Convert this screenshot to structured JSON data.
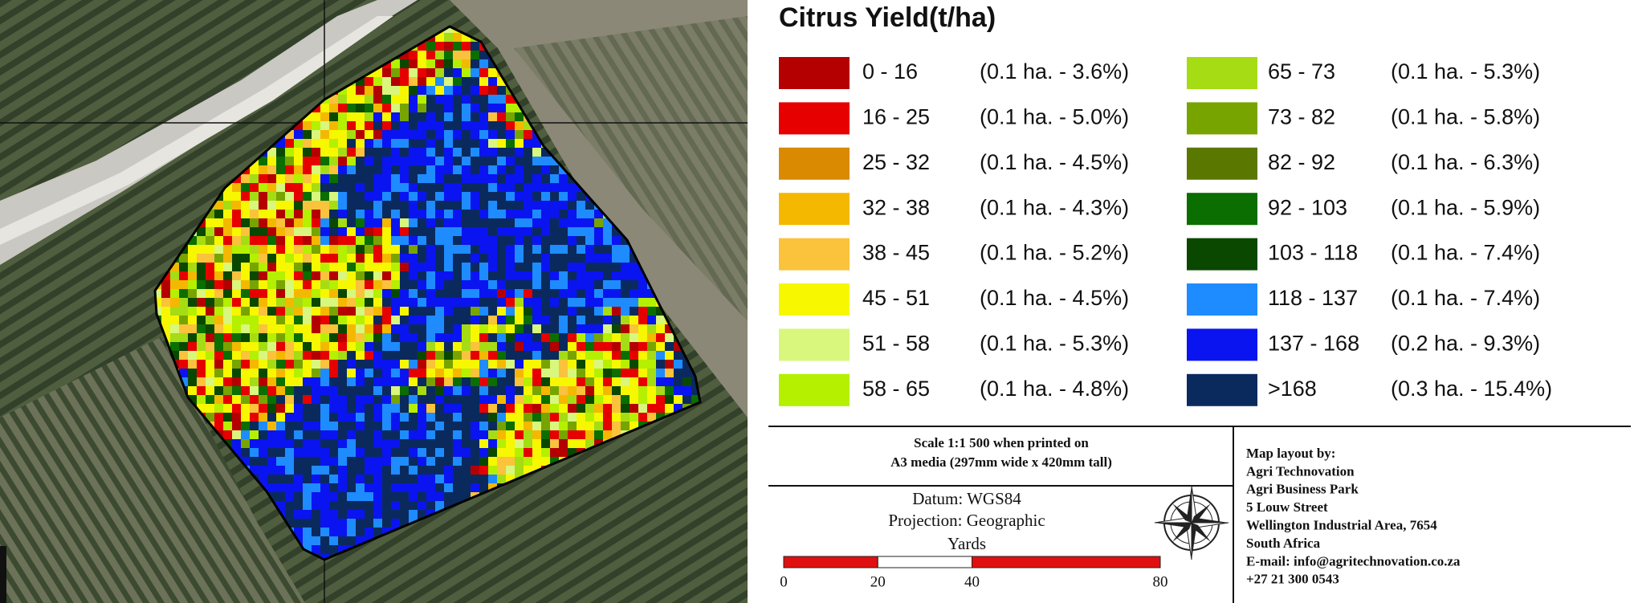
{
  "legend": {
    "title": "Citrus Yield(t/ha)",
    "items": [
      {
        "range": "0 - 16",
        "area": "(0.1 ha. - 3.6%)",
        "color": "#b40000"
      },
      {
        "range": "16 - 25",
        "area": "(0.1 ha. - 5.0%)",
        "color": "#e60000"
      },
      {
        "range": "25 - 32",
        "area": "(0.1 ha. - 4.5%)",
        "color": "#d98a00"
      },
      {
        "range": "32 - 38",
        "area": "(0.1 ha. - 4.3%)",
        "color": "#f5b800"
      },
      {
        "range": "38 - 45",
        "area": "(0.1 ha. - 5.2%)",
        "color": "#fbc23c"
      },
      {
        "range": "45 - 51",
        "area": "(0.1 ha. - 4.5%)",
        "color": "#f7f700"
      },
      {
        "range": "51 - 58",
        "area": "(0.1 ha. - 5.3%)",
        "color": "#d8f77c"
      },
      {
        "range": "58 - 65",
        "area": "(0.1 ha. - 4.8%)",
        "color": "#b4f000"
      },
      {
        "range": "65 - 73",
        "area": "(0.1 ha. - 5.3%)",
        "color": "#a6dc14"
      },
      {
        "range": "73 - 82",
        "area": "(0.1 ha. - 5.8%)",
        "color": "#78a400"
      },
      {
        "range": "82 - 92",
        "area": "(0.1 ha. - 6.3%)",
        "color": "#5a7800"
      },
      {
        "range": "92 - 103",
        "area": "(0.1 ha. - 5.9%)",
        "color": "#0a6e00"
      },
      {
        "range": "103 - 118",
        "area": "(0.1 ha. - 7.4%)",
        "color": "#0a4800"
      },
      {
        "range": "118 - 137",
        "area": "(0.1 ha. - 7.4%)",
        "color": "#1e8cff"
      },
      {
        "range": "137 - 168",
        "area": "(0.2 ha. - 9.3%)",
        "color": "#0a14f0"
      },
      {
        "range": ">168",
        "area": "(0.3 ha. - 15.4%)",
        "color": "#0a2a5e"
      }
    ]
  },
  "scale_note": [
    "Scale 1:1 500 when printed on",
    "A3 media (297mm wide x 420mm tall)"
  ],
  "datum": "Datum: WGS84",
  "projection": "Projection: Geographic",
  "scale_bar": {
    "unit": "Yards",
    "ticks": [
      0,
      20,
      40,
      80
    ]
  },
  "credits": [
    "Map layout by:",
    "Agri Technovation",
    "Agri Business Park",
    "5 Louw Street",
    "Wellington Industrial Area, 7654",
    "South Africa",
    "E-mail: info@agritechnovation.co.za",
    "+27 21 300 0543"
  ]
}
